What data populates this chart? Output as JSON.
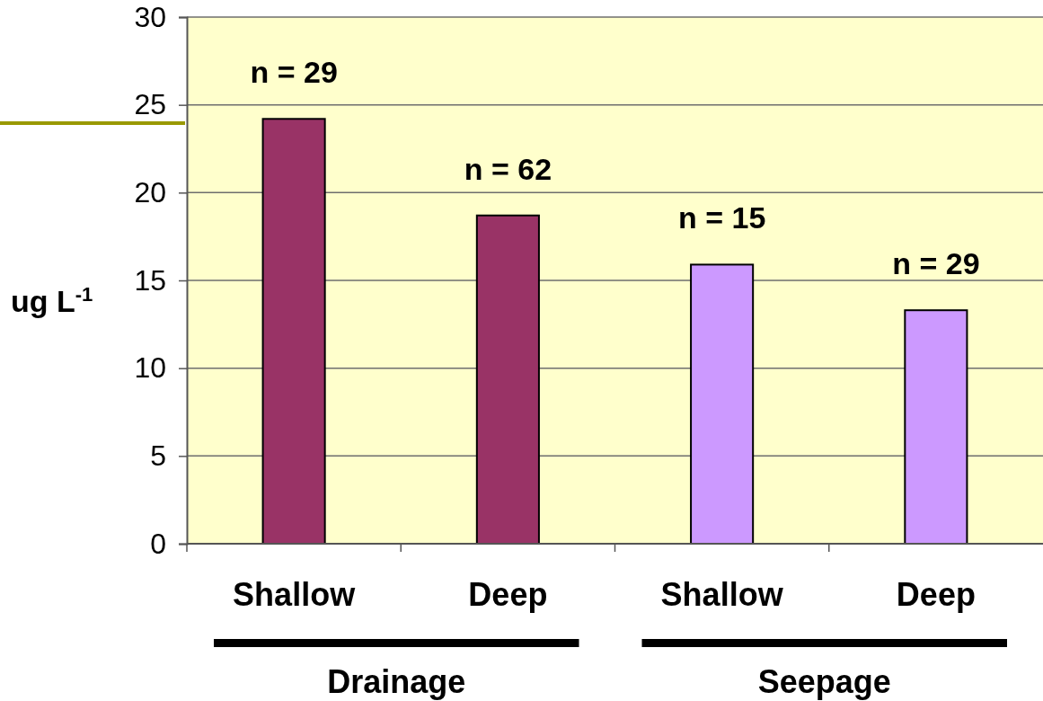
{
  "chart_data": {
    "type": "bar",
    "categories": [
      "Shallow",
      "Deep",
      "Shallow",
      "Deep"
    ],
    "values": [
      24.2,
      18.7,
      15.9,
      13.3
    ],
    "colors": [
      "#993366",
      "#993366",
      "#cc99ff",
      "#cc99ff"
    ],
    "ylabel": "ug L$^{-1}$",
    "ylim": [
      0,
      30
    ],
    "yticks": [
      0,
      5,
      10,
      15,
      20,
      25,
      30
    ],
    "grid": "y",
    "annotations": [
      "n = 29",
      "n = 62",
      "n = 15",
      "n = 29",
      "Drainage",
      "Seepage"
    ]
  }
}
